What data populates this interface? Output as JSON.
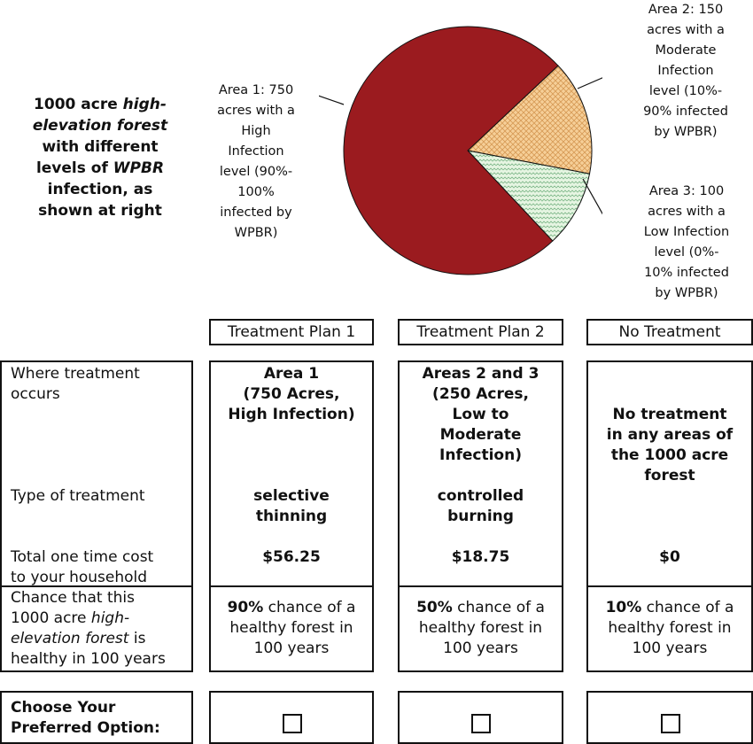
{
  "intro": {
    "line1_a": "1000 acre ",
    "line1_b": "high-",
    "line2": "elevation forest",
    "line3": "with different",
    "line4_a": "levels of ",
    "line4_b": "WPBR",
    "line5": "infection, as",
    "line6": "shown at right"
  },
  "pie_labels": {
    "area1": [
      "Area 1: 750",
      "acres with a",
      "High",
      "Infection",
      "level (90%-",
      "100%",
      "infected by",
      "WPBR)"
    ],
    "area2": [
      "Area 2: 150",
      "acres with a",
      "Moderate",
      "Infection",
      "level (10%-",
      "90% infected",
      "by WPBR)"
    ],
    "area3": [
      "Area 3: 100",
      "acres with a",
      "Low Infection",
      "level (0%-",
      "10% infected",
      "by WPBR)"
    ]
  },
  "chart_data": {
    "type": "pie",
    "slices": [
      {
        "label": "Area 1",
        "value": 750,
        "color": "#9b1b1f"
      },
      {
        "label": "Area 2",
        "value": 150,
        "color": "#f4c98e"
      },
      {
        "label": "Area 3",
        "value": 100,
        "color": "#dff2dc"
      }
    ]
  },
  "columns": [
    "Treatment Plan 1",
    "Treatment Plan 2",
    "No Treatment"
  ],
  "rows": {
    "where": "Where treatment occurs",
    "type": "Type of treatment",
    "cost": [
      "Total one time cost",
      "to your household"
    ],
    "chance": {
      "l1": "Chance that this",
      "l2a": "1000 acre ",
      "l2b": "high-",
      "l3a": "elevation forest",
      "l3b": " is",
      "l4": "healthy in 100 years"
    }
  },
  "plan1": {
    "where": [
      "Area 1",
      "(750 Acres,",
      "High Infection)"
    ],
    "type": [
      "selective",
      "thinning"
    ],
    "cost": "$56.25",
    "chance_pct": "90%",
    "chance_rest": [
      " chance of a",
      "healthy forest in",
      "100 years"
    ]
  },
  "plan2": {
    "where": [
      "Areas 2 and 3",
      "(250 Acres,",
      "Low to",
      "Moderate",
      "Infection)"
    ],
    "type": [
      "controlled",
      "burning"
    ],
    "cost": "$18.75",
    "chance_pct": "50%",
    "chance_rest": [
      " chance of a",
      "healthy forest in",
      "100 years"
    ]
  },
  "plan3": {
    "where": [
      "No treatment",
      "in any areas of",
      "the 1000 acre",
      "forest"
    ],
    "cost": "$0",
    "chance_pct": "10%",
    "chance_rest": [
      " chance of a",
      "healthy forest in",
      "100 years"
    ]
  },
  "choose": [
    "Choose Your",
    "Preferred Option:"
  ]
}
